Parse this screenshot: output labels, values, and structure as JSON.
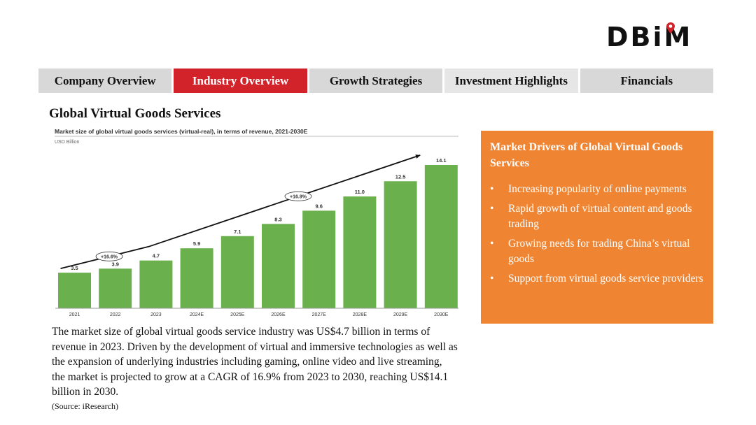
{
  "brand": {
    "logo_text": "DBiM"
  },
  "nav": {
    "tabs": [
      {
        "label": "Company Overview",
        "active": false
      },
      {
        "label": "Industry Overview",
        "active": true
      },
      {
        "label": "Growth Strategies",
        "active": false
      },
      {
        "label": "Investment Highlights",
        "active": false
      },
      {
        "label": "Financials",
        "active": false
      }
    ]
  },
  "section": {
    "title": "Global Virtual Goods Services"
  },
  "chart_data": {
    "type": "bar",
    "title": "Market size of global virtual goods services (virtual-real), in terms of revenue, 2021-2030E",
    "unit_label": "USD Billion",
    "categories": [
      "2021",
      "2022",
      "2023",
      "2024E",
      "2025E",
      "2026E",
      "2027E",
      "2028E",
      "2029E",
      "2030E"
    ],
    "values": [
      3.5,
      3.9,
      4.7,
      5.9,
      7.1,
      8.3,
      9.6,
      11.0,
      12.5,
      14.1
    ],
    "value_labels": [
      "3.5",
      "3.9",
      "4.7",
      "5.9",
      "7.1",
      "8.3",
      "9.6",
      "11.0",
      "12.5",
      "14.1"
    ],
    "annotations": [
      {
        "text": "+16.6%",
        "from": "2021",
        "to": "2023"
      },
      {
        "text": "+16.9%",
        "from": "2023",
        "to": "2030E"
      }
    ],
    "ylim": [
      0,
      15
    ],
    "bar_color": "#6ab04c",
    "grid": false,
    "legend": false
  },
  "body": {
    "paragraph": "The market size of global virtual goods service industry was US$4.7 billion in terms of revenue in 2023. Driven by the development of virtual and immersive technologies as well as the expansion of underlying industries including gaming, online video and live streaming, the market is projected to grow at a CAGR of 16.9% from 2023 to 2030, reaching US$14.1 billion in 2030.",
    "source": "(Source: iResearch)"
  },
  "drivers": {
    "title": "Market Drivers of Global Virtual Goods Services",
    "bullet": "•",
    "items": [
      "Increasing popularity of online payments",
      "Rapid growth of virtual content and goods trading",
      "Growing needs for trading China’s virtual goods",
      "Support from virtual goods service providers"
    ],
    "background": "#ef8533"
  },
  "colors": {
    "accent_red": "#d2232a",
    "tab_gray": "#d8d8d8",
    "orange": "#ef8533",
    "bar_green": "#6ab04c"
  }
}
